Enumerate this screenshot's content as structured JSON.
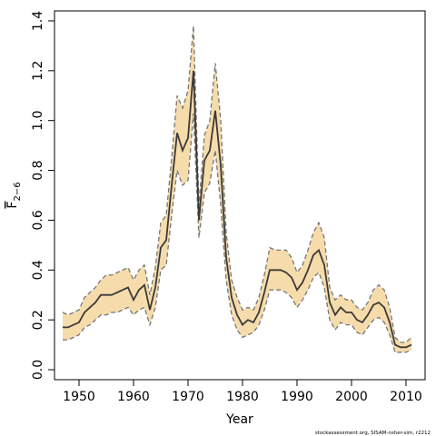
{
  "chart_data": {
    "type": "area",
    "xlabel": "Year",
    "ylabel": "F",
    "ylabel_subscript": "2−6",
    "xlim": [
      1945.5,
      2013.5
    ],
    "ylim": [
      -0.04,
      1.44
    ],
    "x_ticks": [
      1950,
      1960,
      1970,
      1980,
      1990,
      2000,
      2010
    ],
    "y_ticks": [
      0.0,
      0.2,
      0.4,
      0.6,
      0.8,
      1.0,
      1.2,
      1.4
    ],
    "x_tick_labels": [
      "1950",
      "1960",
      "1970",
      "1980",
      "1990",
      "2000",
      "2010"
    ],
    "y_tick_labels": [
      "0.0",
      "0.2",
      "0.4",
      "0.6",
      "0.8",
      "1.0",
      "1.2",
      "1.4"
    ],
    "grid": false,
    "band_color": "#f7dcab",
    "line_color": "#3a3a3a",
    "bound_color": "#777777",
    "x": [
      1947,
      1948,
      1949,
      1950,
      1951,
      1952,
      1953,
      1954,
      1955,
      1956,
      1957,
      1958,
      1959,
      1960,
      1961,
      1962,
      1963,
      1964,
      1965,
      1966,
      1967,
      1968,
      1969,
      1970,
      1971,
      1972,
      1973,
      1974,
      1975,
      1976,
      1977,
      1978,
      1979,
      1980,
      1981,
      1982,
      1983,
      1984,
      1985,
      1986,
      1987,
      1988,
      1989,
      1990,
      1991,
      1992,
      1993,
      1994,
      1995,
      1996,
      1997,
      1998,
      1999,
      2000,
      2001,
      2002,
      2003,
      2004,
      2005,
      2006,
      2007,
      2008,
      2009,
      2010,
      2011
    ],
    "series": [
      {
        "role": "estimate",
        "values": [
          0.17,
          0.17,
          0.18,
          0.19,
          0.23,
          0.25,
          0.27,
          0.3,
          0.3,
          0.3,
          0.31,
          0.32,
          0.33,
          0.28,
          0.32,
          0.34,
          0.24,
          0.33,
          0.49,
          0.52,
          0.74,
          0.95,
          0.88,
          0.93,
          1.2,
          0.6,
          0.84,
          0.88,
          1.04,
          0.82,
          0.45,
          0.29,
          0.22,
          0.18,
          0.2,
          0.19,
          0.23,
          0.31,
          0.4,
          0.4,
          0.4,
          0.39,
          0.37,
          0.32,
          0.35,
          0.4,
          0.46,
          0.48,
          0.42,
          0.27,
          0.22,
          0.25,
          0.23,
          0.23,
          0.2,
          0.19,
          0.22,
          0.26,
          0.27,
          0.25,
          0.19,
          0.1,
          0.09,
          0.09,
          0.1
        ]
      },
      {
        "role": "upper",
        "values": [
          0.23,
          0.22,
          0.23,
          0.24,
          0.29,
          0.31,
          0.33,
          0.36,
          0.38,
          0.38,
          0.39,
          0.4,
          0.41,
          0.36,
          0.4,
          0.42,
          0.3,
          0.41,
          0.59,
          0.62,
          0.85,
          1.1,
          1.05,
          1.12,
          1.38,
          0.66,
          0.94,
          1.0,
          1.23,
          1.0,
          0.55,
          0.36,
          0.29,
          0.24,
          0.25,
          0.24,
          0.29,
          0.38,
          0.49,
          0.48,
          0.48,
          0.48,
          0.45,
          0.39,
          0.42,
          0.48,
          0.55,
          0.59,
          0.53,
          0.33,
          0.28,
          0.3,
          0.28,
          0.28,
          0.25,
          0.24,
          0.27,
          0.32,
          0.34,
          0.32,
          0.25,
          0.13,
          0.11,
          0.11,
          0.13
        ]
      },
      {
        "role": "lower",
        "values": [
          0.12,
          0.12,
          0.13,
          0.14,
          0.17,
          0.18,
          0.2,
          0.22,
          0.22,
          0.23,
          0.23,
          0.24,
          0.25,
          0.22,
          0.24,
          0.25,
          0.18,
          0.25,
          0.4,
          0.42,
          0.62,
          0.8,
          0.74,
          0.76,
          1.03,
          0.53,
          0.71,
          0.75,
          0.88,
          0.66,
          0.36,
          0.22,
          0.16,
          0.13,
          0.14,
          0.15,
          0.18,
          0.24,
          0.32,
          0.32,
          0.32,
          0.31,
          0.29,
          0.25,
          0.28,
          0.32,
          0.37,
          0.39,
          0.33,
          0.2,
          0.16,
          0.19,
          0.18,
          0.18,
          0.15,
          0.14,
          0.17,
          0.2,
          0.21,
          0.19,
          0.14,
          0.07,
          0.07,
          0.07,
          0.08
        ]
      }
    ]
  },
  "credit": "stockassessment.org, SISAM-nsher-sim, r2212"
}
